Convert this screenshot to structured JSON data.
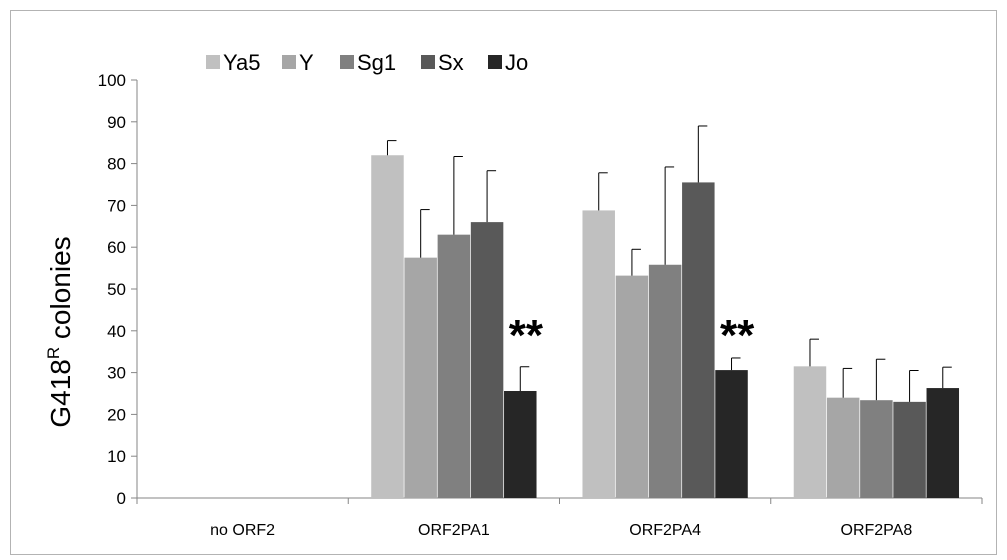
{
  "chart_data": {
    "type": "bar",
    "title": "",
    "xlabel": "",
    "ylabel": "G418",
    "ylabel_superscript": "R",
    "ylabel_suffix": " colonies",
    "ylim": [
      0,
      100
    ],
    "yticks": [
      0,
      10,
      20,
      30,
      40,
      50,
      60,
      70,
      80,
      90,
      100
    ],
    "grid": false,
    "legend_position": "top-left",
    "categories": [
      "no ORF2",
      "ORF2PA1",
      "ORF2PA4",
      "ORF2PA8"
    ],
    "series": [
      {
        "name": "Ya5",
        "color": "#c0c0c0",
        "values": [
          0,
          82,
          68.8,
          31.5
        ],
        "errors": [
          0,
          3.5,
          9,
          6.5
        ]
      },
      {
        "name": "Y",
        "color": "#a6a6a6",
        "values": [
          0,
          57.5,
          53.2,
          24
        ],
        "errors": [
          0,
          11.5,
          6.3,
          7
        ]
      },
      {
        "name": "Sg1",
        "color": "#808080",
        "values": [
          0,
          63,
          55.8,
          23.4
        ],
        "errors": [
          0,
          18.7,
          23.4,
          9.8
        ]
      },
      {
        "name": "Sx",
        "color": "#595959",
        "values": [
          0,
          66,
          75.5,
          23
        ],
        "errors": [
          0,
          12.3,
          13.5,
          7.5
        ]
      },
      {
        "name": "Jo",
        "color": "#262626",
        "values": [
          0,
          25.6,
          30.6,
          26.3
        ],
        "errors": [
          0,
          5.8,
          2.9,
          5
        ]
      }
    ],
    "annotations": [
      {
        "text": "**",
        "category": "ORF2PA1"
      },
      {
        "text": "**",
        "category": "ORF2PA4"
      }
    ]
  }
}
